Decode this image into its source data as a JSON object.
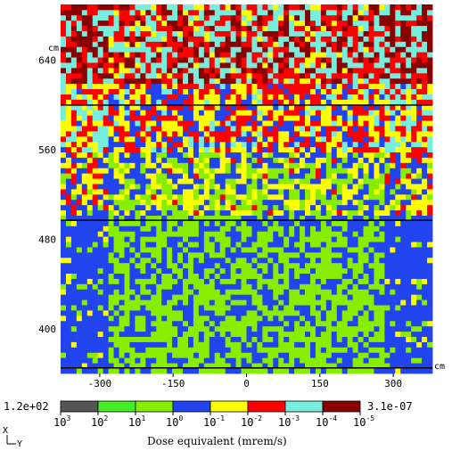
{
  "chart_data": {
    "type": "heatmap",
    "title": "",
    "colorbar_label": "Dose equivalent (mrem/s)",
    "colorbar_max_label": "1.2e+02",
    "colorbar_min_label": "3.1e-07",
    "colorbar_levels": [
      {
        "base": "10",
        "exp": "3"
      },
      {
        "base": "10",
        "exp": "2"
      },
      {
        "base": "10",
        "exp": "1"
      },
      {
        "base": "10",
        "exp": "0"
      },
      {
        "base": "10",
        "exp": "-1"
      },
      {
        "base": "10",
        "exp": "-2"
      },
      {
        "base": "10",
        "exp": "-3"
      },
      {
        "base": "10",
        "exp": "-4"
      },
      {
        "base": "10",
        "exp": "-5"
      }
    ],
    "colorbar_colors": [
      "#555555",
      "#44ee22",
      "#88ee00",
      "#2244ee",
      "#ffff00",
      "#ff0000",
      "#77eedd",
      "#880000"
    ],
    "x_axis": {
      "unit": "cm",
      "range": [
        -380,
        380
      ],
      "ticks": [
        -300,
        -150,
        0,
        150,
        300
      ],
      "tick_labels": [
        "-300",
        "-150",
        "0",
        "150",
        "300"
      ]
    },
    "y_axis": {
      "unit": "cm",
      "range": [
        360,
        690
      ],
      "ticks": [
        400,
        480,
        560,
        640
      ],
      "tick_labels": [
        "400",
        "480",
        "560",
        "640"
      ]
    },
    "horizontal_lines_y": [
      365,
      497,
      600
    ],
    "orientation": {
      "vertical": "X",
      "horizontal": "Y"
    },
    "zones": [
      {
        "y_min": 360,
        "y_max": 440,
        "dominant_exp": 0.15
      },
      {
        "y_min": 440,
        "y_max": 500,
        "dominant_exp": 0.1
      },
      {
        "y_min": 500,
        "y_max": 560,
        "dominant_exp": -0.6
      },
      {
        "y_min": 560,
        "y_max": 620,
        "dominant_exp": -1.8
      },
      {
        "y_min": 620,
        "y_max": 690,
        "dominant_exp": -3.2
      }
    ]
  }
}
